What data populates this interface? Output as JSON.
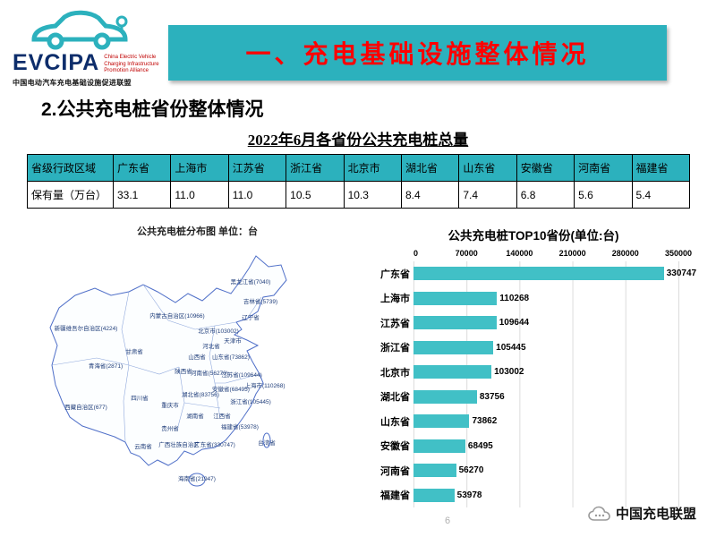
{
  "logo": {
    "brand": "EVCIPA",
    "subtitle_en": "China Electric Vehicle\nCharging Infrastructure\nPromotion Alliance",
    "subtitle_cn": "中国电动汽车充电基础设施促进联盟"
  },
  "header": {
    "title": "一、充电基础设施整体情况"
  },
  "section": {
    "title": "2.公共充电桩省份整体情况"
  },
  "table": {
    "title": "2022年6月各省份公共充电桩总量",
    "row_header": "省级行政区域",
    "columns": [
      "广东省",
      "上海市",
      "江苏省",
      "浙江省",
      "北京市",
      "湖北省",
      "山东省",
      "安徽省",
      "河南省",
      "福建省"
    ],
    "data_row_label": "保有量（万台）",
    "values": [
      "33.1",
      "11.0",
      "11.0",
      "10.5",
      "10.3",
      "8.4",
      "7.4",
      "6.8",
      "5.6",
      "5.4"
    ]
  },
  "map": {
    "title": "公共充电桩分布图  单位：台",
    "labels": [
      "黑龙江省(7040)",
      "吉林省(5739)",
      "辽宁省",
      "内蒙古自治区(10966)",
      "北京市(103002)",
      "天津市",
      "河北省",
      "山西省",
      "山东省(73862)",
      "陕西省",
      "河南省(56270)",
      "江苏省(109644)",
      "上海市(110268)",
      "安徽省(68495)",
      "浙江省(105445)",
      "湖北省(83756)",
      "重庆市",
      "四川省",
      "青海省(2871)",
      "甘肃省",
      "新疆维吾尔自治区(4224)",
      "西藏自治区(677)",
      "湖南省",
      "江西省",
      "贵州省",
      "福建省(53978)",
      "云南省",
      "广西壮族自治区",
      "广东省(330747)",
      "海南省(21947)",
      "台湾省"
    ]
  },
  "chart_data": {
    "type": "bar",
    "orientation": "horizontal",
    "title": "公共充电桩TOP10省份(单位:台)",
    "categories": [
      "广东省",
      "上海市",
      "江苏省",
      "浙江省",
      "北京市",
      "湖北省",
      "山东省",
      "安徽省",
      "河南省",
      "福建省"
    ],
    "values": [
      330747,
      110268,
      109644,
      105445,
      103002,
      83756,
      73862,
      68495,
      56270,
      53978
    ],
    "xlim": [
      0,
      350000
    ],
    "x_ticks": [
      0,
      70000,
      140000,
      210000,
      280000,
      350000
    ],
    "bar_color": "#41c0c6",
    "grid": true,
    "legend": "none"
  },
  "footer": {
    "watermark": "中国充电联盟",
    "page_number": "6"
  },
  "colors": {
    "teal": "#2cb1bd",
    "title_red": "#ff0000",
    "map_stroke": "#4f6fc8"
  }
}
